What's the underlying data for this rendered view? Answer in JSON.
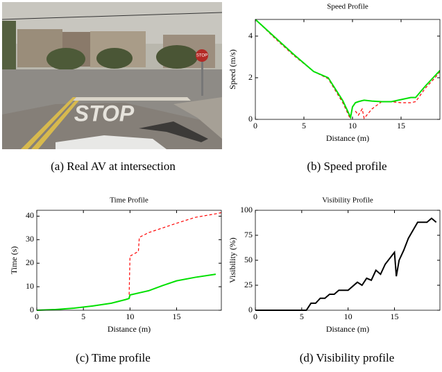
{
  "photo": {
    "road_marking": "STOP",
    "sign": "STOP"
  },
  "captions": [
    "(a) Real AV at intersection",
    "(b) Speed profile",
    "(c) Time profile",
    "(d) Visibility profile"
  ],
  "chart_data": [
    {
      "type": "line",
      "title": "Speed Profile",
      "xlabel": "Distance (m)",
      "ylabel": "Speed (m/s)",
      "x": [
        0,
        2,
        4,
        6,
        7.5,
        9,
        9.8,
        10,
        10.3,
        10.6,
        11,
        11.2,
        12,
        13,
        14,
        15,
        16,
        16.5,
        17.5,
        18.5,
        19
      ],
      "series": [
        {
          "color": "#ff0000",
          "dash": true,
          "values": [
            4.8,
            3.9,
            3.05,
            2.3,
            1.95,
            0.8,
            0,
            null,
            0.4,
            0.2,
            0.5,
            0.05,
            0.5,
            0.85,
            0.85,
            0.8,
            0.8,
            0.85,
            1.5,
            2.0,
            2.3
          ]
        },
        {
          "color": "#00e000",
          "dash": false,
          "values": [
            4.8,
            3.95,
            3.1,
            2.3,
            2.0,
            0.9,
            0.1,
            0.6,
            0.8,
            0.85,
            0.9,
            0.92,
            0.88,
            0.85,
            0.85,
            0.95,
            1.05,
            1.05,
            1.6,
            2.1,
            2.35
          ]
        }
      ],
      "xlim": [
        0,
        19
      ],
      "ylim": [
        0,
        4.8
      ],
      "xticks": [
        0,
        5,
        10,
        15
      ],
      "yticks": [
        0,
        2,
        4
      ]
    },
    {
      "type": "line",
      "title": "Time Profile",
      "xlabel": "Distance (m)",
      "ylabel": "Time (s)",
      "x": [
        0,
        2,
        4,
        6,
        8,
        9.5,
        9.9,
        10,
        10.9,
        11,
        12,
        13.5,
        15,
        17,
        19.2,
        19.8
      ],
      "series": [
        {
          "color": "#ff0000",
          "dash": true,
          "values": [
            0,
            0.3,
            0.9,
            1.8,
            3,
            4.5,
            5,
            23,
            25,
            31,
            33,
            35,
            37,
            39.5,
            41,
            41.5
          ]
        },
        {
          "color": "#00e000",
          "dash": false,
          "values": [
            0,
            0.3,
            0.9,
            1.8,
            3,
            4.5,
            5,
            6.5,
            7.3,
            7.4,
            8.3,
            10.5,
            12.5,
            14,
            15.3,
            null
          ]
        }
      ],
      "xlim": [
        0,
        19.8
      ],
      "ylim": [
        0,
        42.5
      ],
      "xticks": [
        0,
        5,
        10,
        15
      ],
      "yticks": [
        0,
        10,
        20,
        30,
        40
      ]
    },
    {
      "type": "line",
      "title": "Visibility Profile",
      "xlabel": "Distance (m)",
      "ylabel": "Visibility (%)",
      "x": [
        0,
        5.5,
        6,
        6.5,
        7,
        7.5,
        8,
        8.5,
        9,
        9.5,
        10,
        10.5,
        11,
        11.5,
        12,
        12.5,
        13,
        13.5,
        14,
        14.5,
        15,
        15.2,
        15.5,
        16,
        16.5,
        17,
        17.5,
        18,
        18.5,
        19,
        19.5
      ],
      "series": [
        {
          "color": "#000000",
          "dash": false,
          "values": [
            0,
            0,
            7,
            7,
            12,
            12,
            16,
            16,
            20,
            20,
            20,
            24,
            28,
            25,
            32,
            30,
            40,
            36,
            46,
            52,
            58,
            34,
            50,
            60,
            72,
            80,
            88,
            88,
            88,
            92,
            88
          ]
        }
      ],
      "xlim": [
        0,
        19.9
      ],
      "ylim": [
        0,
        100
      ],
      "xticks": [
        0,
        5,
        10,
        15
      ],
      "yticks": [
        0,
        25,
        50,
        75,
        100
      ]
    }
  ]
}
